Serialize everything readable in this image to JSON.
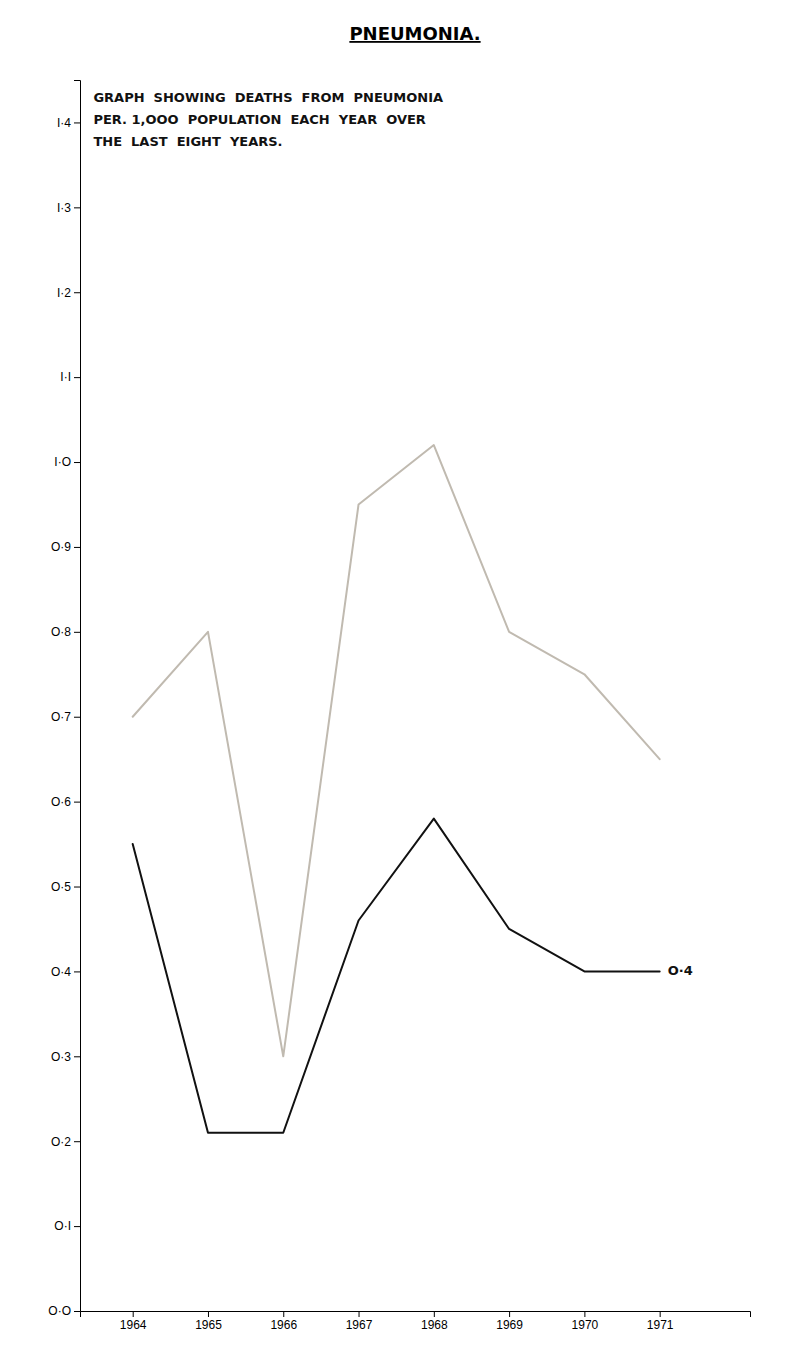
{
  "chart_data": {
    "type": "line",
    "title": "PNEUMONIA.",
    "annotations": [
      "GRAPH  SHOWING  DEATHS  FROM  PNEUMONIA",
      "PER. 1,OOO  POPULATION  EACH  YEAR  OVER",
      "THE  LAST  EIGHT  YEARS."
    ],
    "x": [
      1964,
      1965,
      1966,
      1967,
      1968,
      1969,
      1970,
      1971
    ],
    "series": [
      {
        "color": "#c0bab0",
        "values": [
          0.7,
          0.8,
          0.3,
          0.95,
          1.02,
          0.8,
          0.75,
          0.65
        ]
      },
      {
        "color": "#111111",
        "values": [
          0.55,
          0.21,
          0.21,
          0.46,
          0.58,
          0.45,
          0.4,
          0.4
        ],
        "end_label": "O·4"
      }
    ],
    "xlim": [
      1963.3,
      1972.2
    ],
    "xticks": [
      1964,
      1965,
      1966,
      1967,
      1968,
      1969,
      1970,
      1971
    ],
    "ylim": [
      0.0,
      1.45
    ],
    "yticks": [
      {
        "value": 0.0,
        "label": "O·O"
      },
      {
        "value": 0.1,
        "label": "O·I"
      },
      {
        "value": 0.2,
        "label": "O·2"
      },
      {
        "value": 0.3,
        "label": "O·3"
      },
      {
        "value": 0.4,
        "label": "O·4"
      },
      {
        "value": 0.5,
        "label": "O·5"
      },
      {
        "value": 0.6,
        "label": "O·6"
      },
      {
        "value": 0.7,
        "label": "O·7"
      },
      {
        "value": 0.8,
        "label": "O·8"
      },
      {
        "value": 0.9,
        "label": "O·9"
      },
      {
        "value": 1.0,
        "label": "I·O"
      },
      {
        "value": 1.1,
        "label": "I·I"
      },
      {
        "value": 1.2,
        "label": "I·2"
      },
      {
        "value": 1.3,
        "label": "I·3"
      },
      {
        "value": 1.4,
        "label": "I·4"
      }
    ],
    "grid": false
  }
}
